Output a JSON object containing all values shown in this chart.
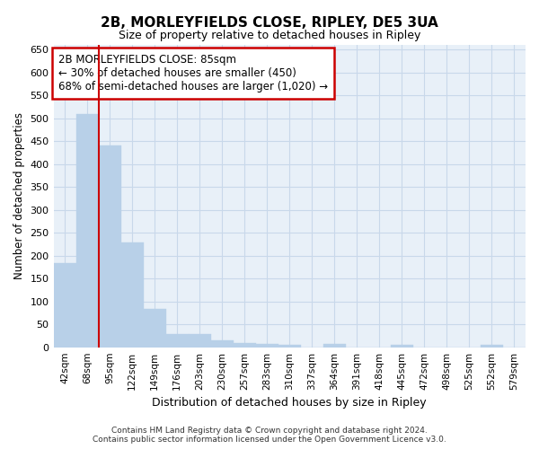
{
  "title": "2B, MORLEYFIELDS CLOSE, RIPLEY, DE5 3UA",
  "subtitle": "Size of property relative to detached houses in Ripley",
  "xlabel": "Distribution of detached houses by size in Ripley",
  "ylabel": "Number of detached properties",
  "footer_line1": "Contains HM Land Registry data © Crown copyright and database right 2024.",
  "footer_line2": "Contains public sector information licensed under the Open Government Licence v3.0.",
  "categories": [
    "42sqm",
    "68sqm",
    "95sqm",
    "122sqm",
    "149sqm",
    "176sqm",
    "203sqm",
    "230sqm",
    "257sqm",
    "283sqm",
    "310sqm",
    "337sqm",
    "364sqm",
    "391sqm",
    "418sqm",
    "445sqm",
    "472sqm",
    "498sqm",
    "525sqm",
    "552sqm",
    "579sqm"
  ],
  "values": [
    183,
    510,
    440,
    228,
    83,
    28,
    28,
    15,
    10,
    8,
    5,
    0,
    8,
    0,
    0,
    5,
    0,
    0,
    0,
    5,
    0
  ],
  "bar_color": "#b8d0e8",
  "bar_edge_color": "#b8d0e8",
  "grid_color": "#c8d8ea",
  "annotation_text_line1": "2B MORLEYFIELDS CLOSE: 85sqm",
  "annotation_text_line2": "← 30% of detached houses are smaller (450)",
  "annotation_text_line3": "68% of semi-detached houses are larger (1,020) →",
  "annotation_box_color": "#ffffff",
  "annotation_box_edge_color": "#cc0000",
  "vline_x": 1.5,
  "vline_color": "#cc0000",
  "ylim": [
    0,
    660
  ],
  "yticks": [
    0,
    50,
    100,
    150,
    200,
    250,
    300,
    350,
    400,
    450,
    500,
    550,
    600,
    650
  ],
  "background_color": "#ffffff",
  "plot_bg_color": "#e8f0f8"
}
